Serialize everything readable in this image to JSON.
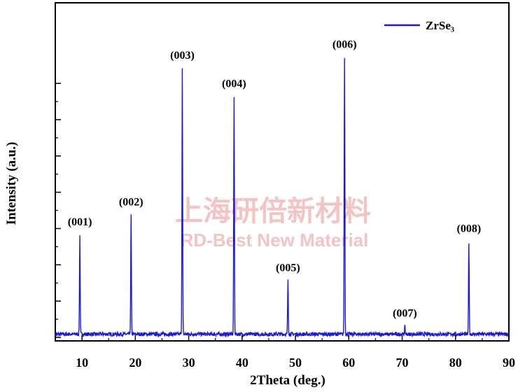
{
  "chart_data": {
    "type": "line",
    "xlabel": "2Theta (deg.)",
    "ylabel": "Intensity (a.u.)",
    "xlim": [
      5,
      90
    ],
    "ylim": [
      0,
      1000
    ],
    "x_ticks": [
      "10",
      "20",
      "30",
      "40",
      "50",
      "60",
      "70",
      "80",
      "90"
    ],
    "x_tick_values": [
      10,
      20,
      30,
      40,
      50,
      60,
      70,
      80,
      90
    ],
    "y_tick_values": [
      0,
      135,
      270,
      405,
      540,
      675,
      810,
      945
    ],
    "grid": false,
    "legend_position": "top-right",
    "baseline": 12,
    "series": [
      {
        "name": "ZrSe₃",
        "color": "#1a1adb",
        "peaks": [
          {
            "label": "(001)",
            "x": 9.6,
            "y": 380
          },
          {
            "label": "(002)",
            "x": 19.2,
            "y": 455
          },
          {
            "label": "(003)",
            "x": 28.8,
            "y": 1000
          },
          {
            "label": "(004)",
            "x": 38.5,
            "y": 895
          },
          {
            "label": "(005)",
            "x": 48.6,
            "y": 210
          },
          {
            "label": "(006)",
            "x": 59.2,
            "y": 1040
          },
          {
            "label": "(007)",
            "x": 70.5,
            "y": 40
          },
          {
            "label": "(008)",
            "x": 82.5,
            "y": 355
          }
        ]
      }
    ]
  },
  "watermark": {
    "cn": "上海研倍新材料",
    "en": "RD-Best New Material"
  }
}
